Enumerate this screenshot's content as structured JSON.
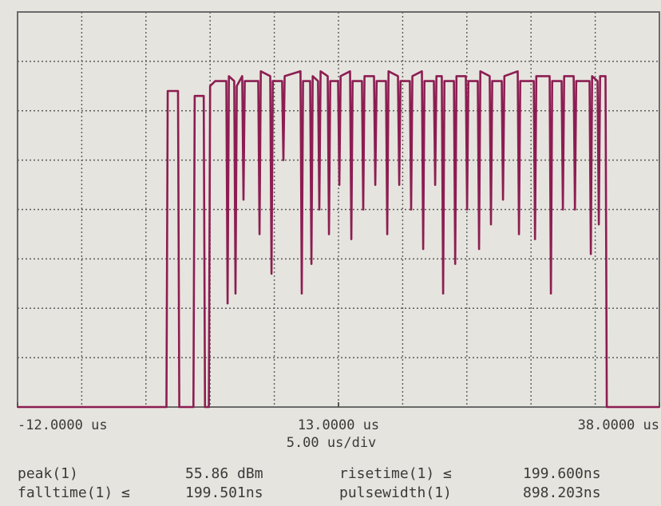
{
  "chart_data": {
    "type": "line",
    "scale_label": "5.00 us/div",
    "xlim": [
      -12,
      38
    ],
    "ylim": [
      0,
      8
    ],
    "xticks": [
      {
        "value": -12,
        "label": "-12.0000 us"
      },
      {
        "value": 13,
        "label": "13.0000 us"
      },
      {
        "value": 38,
        "label": "38.0000 us"
      }
    ],
    "grid": true,
    "series": [
      {
        "color": "#8c1d52",
        "x": [
          -12,
          -0.4,
          -0.3,
          0.5,
          0.6,
          1.7,
          1.8,
          2.5,
          2.6,
          2.9,
          3.0,
          3.4,
          4.26,
          4.36,
          4.46,
          4.88,
          4.98,
          5.08,
          5.5,
          5.6,
          5.7,
          6.75,
          6.85,
          6.95,
          7.68,
          7.78,
          7.88,
          8.61,
          8.71,
          8.81,
          10.04,
          10.14,
          10.24,
          10.79,
          10.89,
          10.99,
          11.41,
          11.51,
          11.61,
          12.16,
          12.26,
          12.36,
          12.97,
          13.07,
          13.17,
          13.9,
          14.0,
          14.1,
          14.83,
          14.93,
          15.03,
          15.77,
          15.87,
          15.97,
          16.7,
          16.8,
          16.9,
          17.63,
          17.73,
          17.83,
          18.56,
          18.66,
          18.76,
          19.5,
          19.6,
          19.7,
          20.43,
          20.53,
          20.63,
          21.05,
          21.15,
          21.25,
          21.99,
          22.09,
          22.19,
          22.92,
          23.02,
          23.12,
          23.85,
          23.95,
          24.05,
          24.78,
          24.88,
          24.98,
          25.72,
          25.82,
          25.92,
          26.96,
          27.06,
          27.16,
          28.21,
          28.31,
          28.41,
          29.45,
          29.55,
          29.65,
          30.38,
          30.48,
          30.58,
          31.32,
          31.42,
          31.52,
          32.56,
          32.66,
          32.76,
          33.18,
          33.28,
          33.38,
          33.8,
          33.9,
          38
        ],
        "values": [
          0,
          0,
          6.4,
          6.4,
          0,
          0,
          6.3,
          6.3,
          0,
          0,
          6.5,
          6.6,
          6.6,
          2.1,
          6.7,
          6.6,
          2.3,
          6.5,
          6.7,
          4.2,
          6.6,
          6.6,
          3.5,
          6.8,
          6.7,
          2.7,
          6.6,
          6.6,
          5.0,
          6.7,
          6.8,
          2.3,
          6.6,
          6.6,
          2.9,
          6.7,
          6.6,
          4.0,
          6.8,
          6.7,
          3.5,
          6.6,
          6.6,
          4.5,
          6.7,
          6.8,
          3.4,
          6.6,
          6.6,
          4.0,
          6.7,
          6.7,
          4.5,
          6.6,
          6.6,
          3.5,
          6.8,
          6.7,
          4.5,
          6.6,
          6.6,
          4.0,
          6.7,
          6.8,
          3.2,
          6.6,
          6.6,
          4.5,
          6.7,
          6.7,
          2.3,
          6.6,
          6.6,
          2.9,
          6.7,
          6.7,
          4.0,
          6.6,
          6.6,
          3.2,
          6.8,
          6.7,
          3.7,
          6.6,
          6.6,
          4.2,
          6.7,
          6.8,
          3.5,
          6.6,
          6.6,
          3.4,
          6.7,
          6.7,
          2.3,
          6.6,
          6.6,
          4.0,
          6.7,
          6.7,
          4.0,
          6.6,
          6.6,
          3.1,
          6.7,
          6.6,
          3.7,
          6.7,
          6.7,
          0,
          0
        ]
      }
    ],
    "readouts": [
      [
        "peak(1)",
        "55.86 dBm",
        "risetime(1) ≤",
        "199.600ns"
      ],
      [
        "falltime(1) ≤",
        "199.501ns",
        "pulsewidth(1)",
        "898.203ns"
      ]
    ]
  }
}
